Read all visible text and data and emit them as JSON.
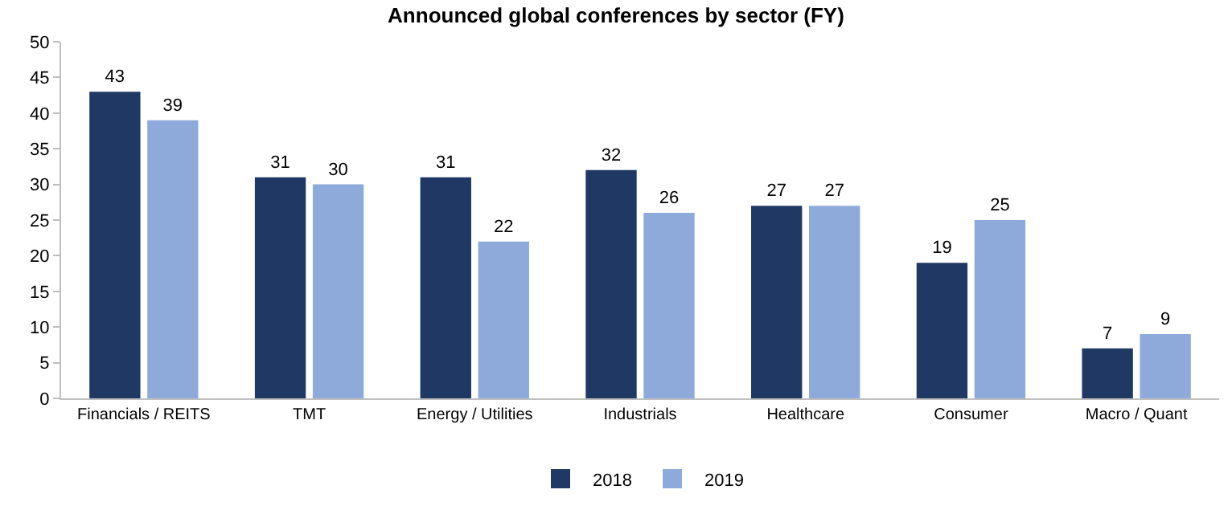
{
  "chart_data": {
    "type": "bar",
    "title": "Announced global conferences by sector (FY)",
    "categories": [
      "Financials / REITS",
      "TMT",
      "Energy / Utilities",
      "Industrials",
      "Healthcare",
      "Consumer",
      "Macro / Quant"
    ],
    "series": [
      {
        "name": "2018",
        "color": "#1f3864",
        "values": [
          43,
          31,
          31,
          32,
          27,
          19,
          7
        ]
      },
      {
        "name": "2019",
        "color": "#8eaadb",
        "values": [
          39,
          30,
          22,
          26,
          27,
          25,
          9
        ]
      }
    ],
    "ylim": [
      0,
      50
    ],
    "yticks": [
      0,
      5,
      10,
      15,
      20,
      25,
      30,
      35,
      40,
      45,
      50
    ],
    "data_labels": true,
    "legend": "bottom"
  }
}
